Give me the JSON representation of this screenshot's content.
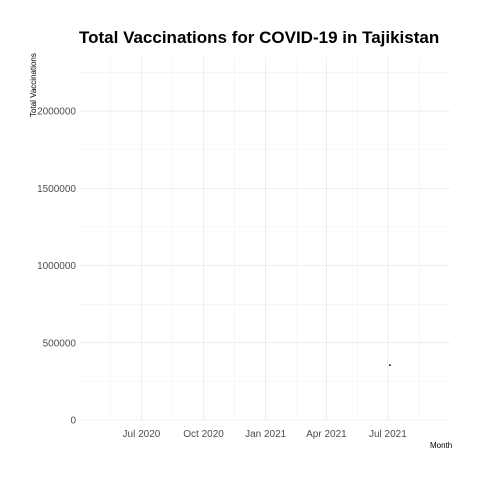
{
  "chart_data": {
    "type": "scatter",
    "title": "Total Vaccinations for COVID-19 in Tajikistan",
    "xlabel": "Month",
    "ylabel": "Total Vaccinations",
    "x_scale": "date",
    "xlim": [
      "2020-04-01",
      "2021-10-01"
    ],
    "x_ticks": [
      "2020-07-01",
      "2020-10-01",
      "2021-01-01",
      "2021-04-01",
      "2021-07-01"
    ],
    "x_tick_labels": [
      "Jul 2020",
      "Oct 2020",
      "Jan 2021",
      "Apr 2021",
      "Jul 2021"
    ],
    "ylim": [
      0,
      2350000
    ],
    "y_ticks": [
      0,
      500000,
      1000000,
      1500000,
      2000000
    ],
    "y_tick_labels": [
      "0",
      "500000",
      "1000000",
      "1500000",
      "2000000"
    ],
    "grid": true,
    "series": [
      {
        "points": [
          {
            "x": "2021-07-04",
            "y": 355000
          }
        ]
      }
    ]
  }
}
